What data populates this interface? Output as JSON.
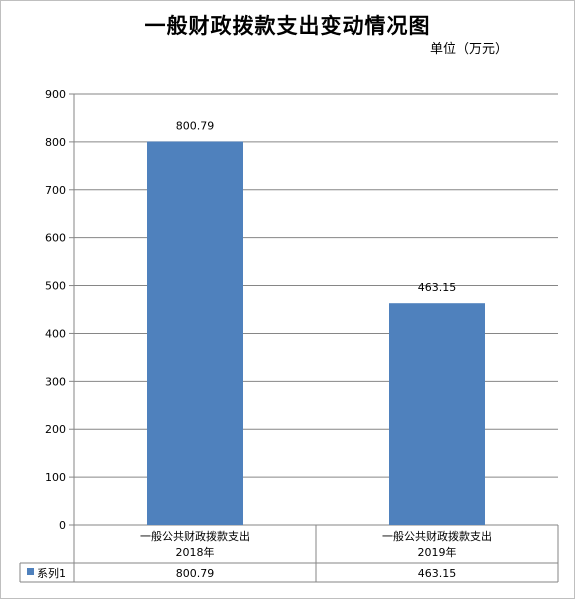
{
  "chart_data": {
    "type": "bar",
    "title": "一般财政拨款支出变动情况图",
    "unit_label": "单位（万元）",
    "categories": [
      [
        "一般公共财政拨款支出",
        "2018年"
      ],
      [
        "一般公共财政拨款支出",
        "2019年"
      ]
    ],
    "series": [
      {
        "name": "系列1",
        "color": "#4f81bd",
        "values": [
          800.79,
          463.15
        ]
      }
    ],
    "data_labels": [
      "800.79",
      "463.15"
    ],
    "yticks": [
      0,
      100,
      200,
      300,
      400,
      500,
      600,
      700,
      800,
      900
    ],
    "ylim": [
      0,
      900
    ],
    "grid": true,
    "legend": "data-table"
  }
}
